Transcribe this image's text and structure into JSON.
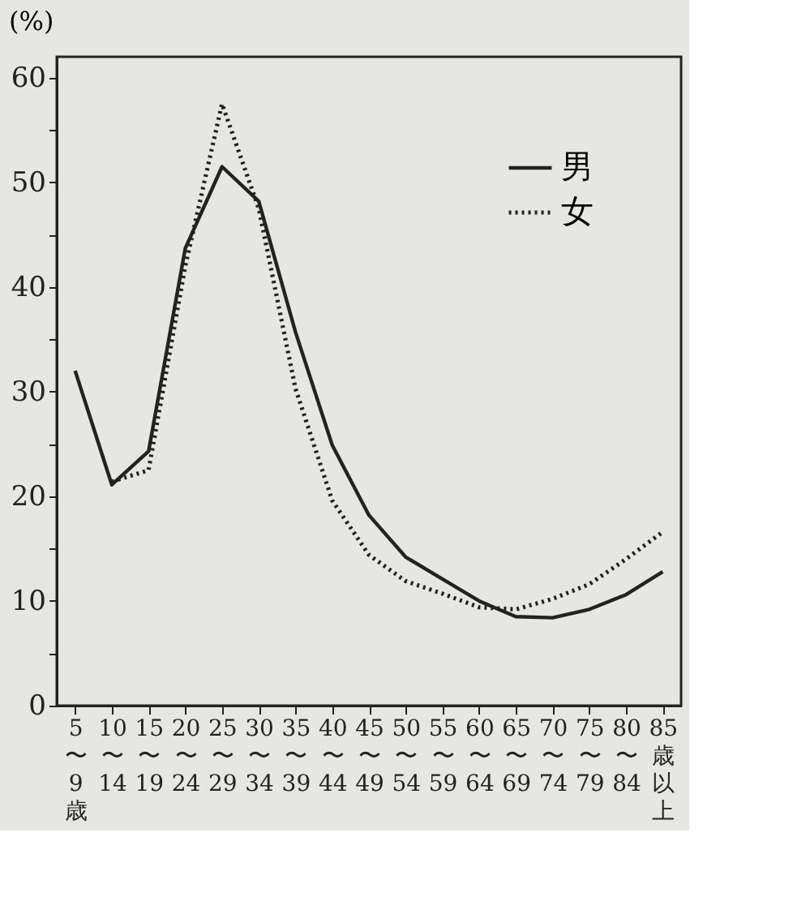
{
  "chart_data": {
    "type": "line",
    "ylabel": "(%)",
    "categories": [
      "5〜9歳",
      "10〜14",
      "15〜19",
      "20〜24",
      "25〜29",
      "30〜34",
      "35〜39",
      "40〜44",
      "45〜49",
      "50〜54",
      "55〜59",
      "60〜64",
      "65〜69",
      "70〜74",
      "75〜79",
      "80〜84",
      "85歳以上"
    ],
    "series": [
      {
        "name": "男",
        "color": "#222222",
        "line_style": "solid",
        "values": [
          32,
          21.1,
          24.3,
          43.7,
          51.5,
          48.2,
          35.7,
          24.9,
          18.2,
          14.2,
          12.1,
          10,
          8.5,
          8.4,
          9.2,
          10.6,
          12.8
        ]
      },
      {
        "name": "女",
        "color": "#222222",
        "line_style": "dotted",
        "values": [
          null,
          21.4,
          22.5,
          42,
          57.5,
          47.5,
          30.3,
          19.6,
          14.4,
          11.9,
          10.7,
          9.4,
          9.2,
          10.2,
          11.6,
          14,
          16.6
        ]
      }
    ],
    "ylim": [
      0,
      62
    ],
    "yticks": [
      0,
      {
        "value": 5,
        "label": null
      },
      10,
      {
        "value": 15,
        "label": null
      },
      20,
      {
        "value": 25,
        "label": null
      },
      30,
      {
        "value": 35,
        "label": null
      },
      40,
      {
        "value": 45,
        "label": null
      },
      50,
      {
        "value": 55,
        "label": null
      },
      60
    ],
    "grid": false,
    "legend": "top right",
    "marker": "none"
  }
}
